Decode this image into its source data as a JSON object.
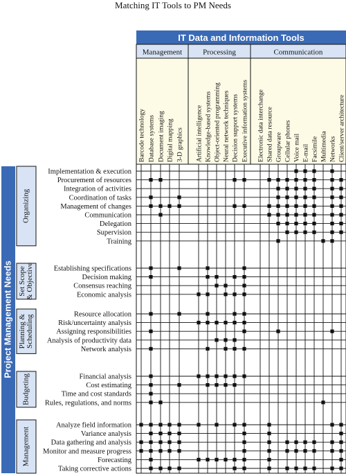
{
  "title": "Matching IT Tools to PM Needs",
  "header": {
    "main": "IT Data and Information Tools",
    "groups": [
      "Management",
      "Processing",
      "Communication"
    ]
  },
  "columns": [
    "Barcode technology",
    "Database systems",
    "Document imaging",
    "Digital mapping",
    "3-D graphics",
    "Artificial intelligence",
    "Knowledge-based systems",
    "Object-oriented programming",
    "Neural network techniques",
    "Decision support systems",
    "Executive information systems",
    "Electronic data interchange",
    "Shared data resource",
    "Groupware",
    "Cellular phones",
    "Voice mail",
    "E-mail",
    "Facsimile",
    "Multimedia",
    "Networks",
    "Client/server architecture"
  ],
  "column_groups": [
    0,
    0,
    0,
    0,
    0,
    1,
    1,
    1,
    1,
    1,
    1,
    2,
    2,
    2,
    2,
    2,
    2,
    2,
    2,
    2,
    2
  ],
  "left_title": "Project Management Needs",
  "categories": [
    {
      "label": [
        "Organizing"
      ],
      "rows": [
        {
          "name": "Implementation & execution",
          "marks": [
            15,
            16,
            17,
            19
          ]
        },
        {
          "name": "Procurement of resources",
          "marks": [
            1,
            2,
            9,
            10,
            12,
            13,
            14,
            15,
            16,
            17,
            19,
            20
          ]
        },
        {
          "name": "Integration of activities",
          "marks": [
            13,
            14,
            15,
            16,
            17,
            19,
            20
          ]
        },
        {
          "name": "Coordination of tasks",
          "marks": [
            1,
            4,
            13,
            14,
            15,
            16,
            17,
            19,
            20
          ]
        },
        {
          "name": "Management of changes",
          "marks": [
            1,
            2,
            3,
            4,
            9,
            10,
            12,
            13,
            14,
            15,
            16,
            17,
            19,
            20
          ]
        },
        {
          "name": "Communication",
          "marks": [
            2,
            12,
            13,
            14,
            15,
            16,
            17,
            19,
            20
          ]
        },
        {
          "name": "Delegation",
          "marks": [
            13,
            14,
            15,
            16,
            17,
            19,
            20
          ]
        },
        {
          "name": "Supervision",
          "marks": [
            14,
            15,
            16,
            17,
            19,
            20
          ]
        },
        {
          "name": "Training",
          "marks": [
            13,
            18,
            19
          ]
        }
      ]
    },
    {
      "label": [
        "Set Scope",
        "& Objective"
      ],
      "rows": [
        {
          "name": "Establishing specifications",
          "marks": [
            1,
            4,
            6,
            10
          ]
        },
        {
          "name": "Decision making",
          "marks": [
            1,
            6,
            7,
            9,
            10
          ]
        },
        {
          "name": "Consensus reaching",
          "marks": [
            7,
            8,
            10
          ]
        },
        {
          "name": "Economic analysis",
          "marks": [
            5,
            6,
            8,
            9,
            10
          ]
        }
      ]
    },
    {
      "label": [
        "Planning &",
        "Scheduling"
      ],
      "rows": [
        {
          "name": "Resource allocation",
          "marks": [
            1,
            4,
            6,
            9,
            10
          ]
        },
        {
          "name": "Risk/uncertainty analysis",
          "marks": [
            5,
            6,
            7,
            8,
            9,
            10
          ]
        },
        {
          "name": "Assigning responsibilities",
          "marks": [
            1,
            10,
            13,
            19
          ]
        },
        {
          "name": "Analysis of productivity data",
          "marks": [
            7,
            8,
            9
          ]
        },
        {
          "name": "Network analysis",
          "marks": [
            1,
            6,
            8,
            9,
            10
          ]
        }
      ]
    },
    {
      "label": [
        "Budgeting"
      ],
      "rows": [
        {
          "name": "Financial analysis",
          "marks": [
            1,
            5,
            6,
            7,
            8,
            9,
            10
          ]
        },
        {
          "name": "Cost estimating",
          "marks": [
            1,
            4,
            6,
            7,
            8,
            9
          ]
        },
        {
          "name": "Time and cost standards",
          "marks": [
            1
          ]
        },
        {
          "name": "Rules, regulations, and norms",
          "marks": [
            1,
            2,
            18
          ]
        }
      ]
    },
    {
      "label": [
        "Management"
      ],
      "rows": [
        {
          "name": "Analyze field information",
          "marks": [
            0,
            1,
            2,
            3,
            4,
            5,
            7,
            9,
            10,
            12,
            19,
            20
          ]
        },
        {
          "name": "Variance analysis",
          "marks": [
            1,
            2,
            3,
            4,
            10,
            12,
            20
          ]
        },
        {
          "name": "Data gathering and analysis",
          "marks": [
            0,
            1,
            2,
            3,
            4,
            10,
            12,
            14,
            15,
            16,
            17,
            19,
            20
          ]
        },
        {
          "name": "Monitor and measure progress",
          "marks": [
            0,
            1,
            2,
            3,
            4,
            10,
            12,
            14,
            15,
            16,
            17,
            19,
            20
          ]
        },
        {
          "name": "Forecasting",
          "marks": [
            1,
            5,
            6,
            7,
            8,
            9,
            10,
            12,
            20
          ]
        },
        {
          "name": "Taking corrective actions",
          "marks": [
            1,
            2,
            3,
            4,
            9,
            10,
            12,
            14,
            15,
            16,
            17,
            19,
            20
          ]
        }
      ]
    }
  ],
  "colors": {
    "header_blue": "#3a6ab5",
    "header_light": "#d8e4f5",
    "column_fill": "#fdfbe6",
    "line": "#111111"
  }
}
